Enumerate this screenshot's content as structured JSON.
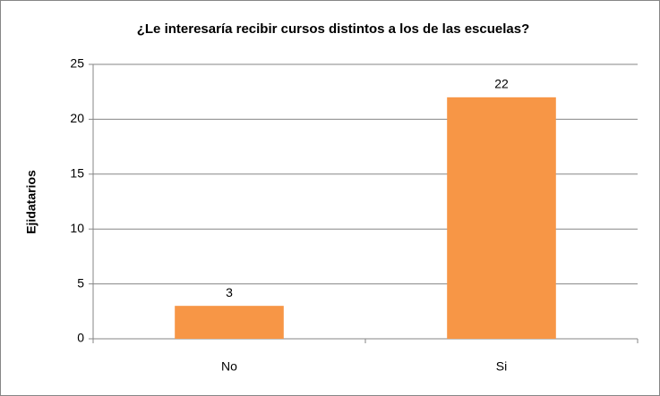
{
  "chart_data": {
    "type": "bar",
    "title": "¿Le interesaría recibir cursos distintos a los de las escuelas?",
    "y_label": "Ejidatarios",
    "categories": [
      "No",
      "Si"
    ],
    "values": [
      3,
      22
    ],
    "color": "#f79646",
    "ylim": [
      0,
      25
    ],
    "yticks": [
      0,
      5,
      10,
      15,
      20,
      25
    ],
    "grid": true
  }
}
